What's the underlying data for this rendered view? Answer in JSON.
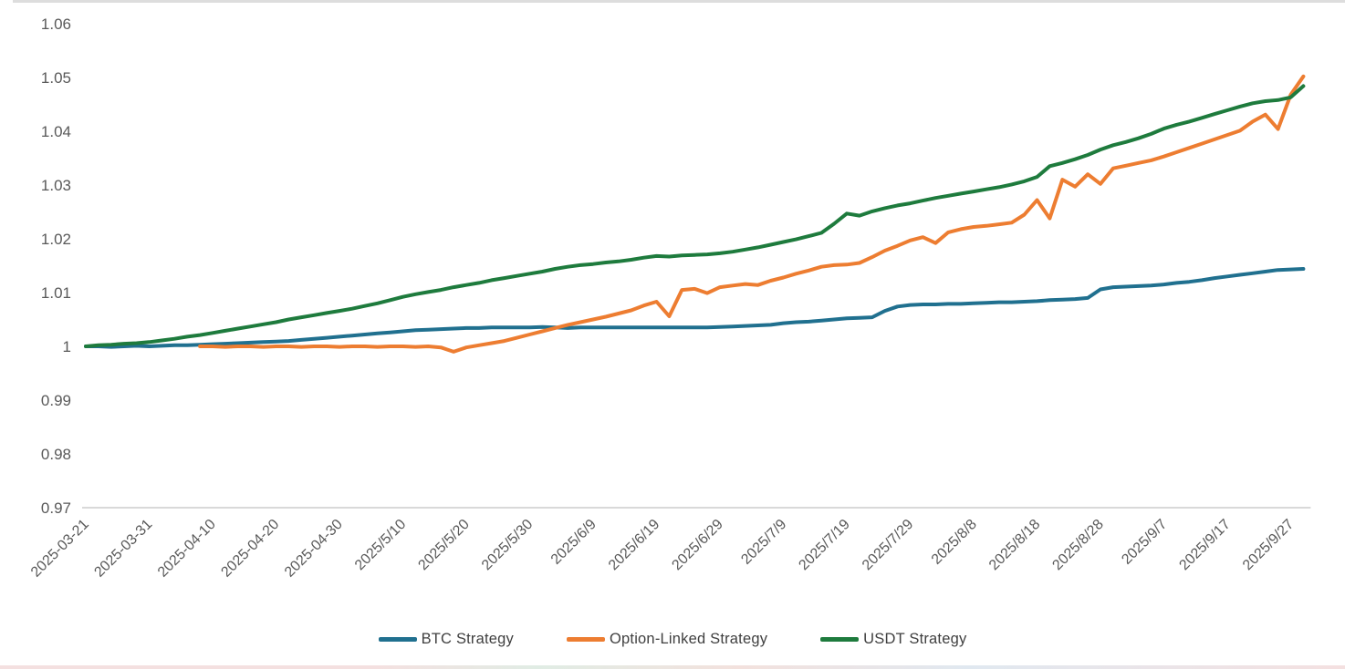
{
  "chart_data": {
    "type": "line",
    "title": "",
    "xlabel": "",
    "ylabel": "",
    "grid": "none",
    "legend_position": "bottom",
    "axis_line_color": "#D9D9D9",
    "tick_label_color": "#595959",
    "y_min": 0.97,
    "y_max": 1.06,
    "y_ticks": [
      "1.06",
      "1.05",
      "1.04",
      "1.03",
      "1.02",
      "1.01",
      "1",
      "0.99",
      "0.98",
      "0.97"
    ],
    "x_tick_labels": [
      "2025-03-21",
      "2025-03-31",
      "2025-04-10",
      "2025-04-20",
      "2025-04-30",
      "2025/5/10",
      "2025/5/20",
      "2025/5/30",
      "2025/6/9",
      "2025/6/19",
      "2025/6/29",
      "2025/7/9",
      "2025/7/19",
      "2025/7/29",
      "2025/8/8",
      "2025/8/18",
      "2025/8/28",
      "2025/9/7",
      "2025/9/17",
      "2025/9/27"
    ],
    "x_tick_interval_days": 10,
    "days_span": 192,
    "sample_step_days": 2,
    "series": [
      {
        "name": "BTC Strategy",
        "color": "#20708F",
        "values": [
          1.0,
          1.0,
          0.9999,
          1.0,
          1.0001,
          1.0,
          1.0001,
          1.0002,
          1.0002,
          1.0003,
          1.0004,
          1.0005,
          1.0006,
          1.0007,
          1.0008,
          1.0009,
          1.001,
          1.0012,
          1.0014,
          1.0016,
          1.0018,
          1.002,
          1.0022,
          1.0024,
          1.0026,
          1.0028,
          1.003,
          1.0031,
          1.0032,
          1.0033,
          1.0034,
          1.0034,
          1.0035,
          1.0035,
          1.0035,
          1.0035,
          1.0036,
          1.0035,
          1.0034,
          1.0035,
          1.0035,
          1.0035,
          1.0035,
          1.0035,
          1.0035,
          1.0035,
          1.0035,
          1.0035,
          1.0035,
          1.0035,
          1.0036,
          1.0037,
          1.0038,
          1.0039,
          1.004,
          1.0043,
          1.0045,
          1.0046,
          1.0048,
          1.005,
          1.0052,
          1.0053,
          1.0054,
          1.0066,
          1.0074,
          1.0077,
          1.0078,
          1.0078,
          1.0079,
          1.0079,
          1.008,
          1.0081,
          1.0082,
          1.0082,
          1.0083,
          1.0084,
          1.0086,
          1.0087,
          1.0088,
          1.009,
          1.0106,
          1.011,
          1.0111,
          1.0112,
          1.0113,
          1.0115,
          1.0118,
          1.012,
          1.0123,
          1.0127,
          1.013,
          1.0133,
          1.0136,
          1.0139,
          1.0142,
          1.0143,
          1.0144
        ]
      },
      {
        "name": "Option-Linked Strategy",
        "color": "#ED7D31",
        "values": [
          null,
          null,
          null,
          null,
          null,
          null,
          null,
          null,
          null,
          1.0,
          1.0,
          0.9999,
          1.0,
          1.0,
          0.9999,
          1.0,
          1.0,
          0.9999,
          1.0,
          1.0,
          0.9999,
          1.0,
          1.0,
          0.9999,
          1.0,
          1.0,
          0.9999,
          1.0,
          0.9998,
          0.999,
          0.9998,
          1.0002,
          1.0006,
          1.001,
          1.0016,
          1.0022,
          1.0028,
          1.0034,
          1.004,
          1.0045,
          1.005,
          1.0055,
          1.0061,
          1.0067,
          1.0076,
          1.0083,
          1.0056,
          1.0105,
          1.0107,
          1.0099,
          1.011,
          1.0113,
          1.0116,
          1.0114,
          1.0122,
          1.0128,
          1.0135,
          1.0141,
          1.0148,
          1.0151,
          1.0152,
          1.0155,
          1.0166,
          1.0178,
          1.0187,
          1.0197,
          1.0203,
          1.0192,
          1.0212,
          1.0218,
          1.0222,
          1.0224,
          1.0227,
          1.023,
          1.0245,
          1.0272,
          1.0238,
          1.031,
          1.0297,
          1.032,
          1.0302,
          1.0331,
          1.0336,
          1.0341,
          1.0346,
          1.0353,
          1.0361,
          1.0369,
          1.0377,
          1.0385,
          1.0393,
          1.0401,
          1.0418,
          1.0431,
          1.0404,
          1.0468,
          1.0502
        ]
      },
      {
        "name": "USDT Strategy",
        "color": "#1E7B3D",
        "values": [
          1.0,
          1.0002,
          1.0003,
          1.0005,
          1.0006,
          1.0008,
          1.0011,
          1.0014,
          1.0018,
          1.0021,
          1.0025,
          1.0029,
          1.0033,
          1.0037,
          1.0041,
          1.0045,
          1.005,
          1.0054,
          1.0058,
          1.0062,
          1.0066,
          1.007,
          1.0075,
          1.008,
          1.0086,
          1.0092,
          1.0097,
          1.0101,
          1.0105,
          1.011,
          1.0114,
          1.0118,
          1.0123,
          1.0127,
          1.0131,
          1.0135,
          1.0139,
          1.0144,
          1.0148,
          1.0151,
          1.0153,
          1.0156,
          1.0158,
          1.0161,
          1.0165,
          1.0168,
          1.0167,
          1.0169,
          1.017,
          1.0171,
          1.0173,
          1.0176,
          1.018,
          1.0184,
          1.0189,
          1.0194,
          1.0199,
          1.0205,
          1.0211,
          1.0228,
          1.0247,
          1.0243,
          1.0251,
          1.0257,
          1.0262,
          1.0266,
          1.0271,
          1.0276,
          1.028,
          1.0284,
          1.0288,
          1.0292,
          1.0296,
          1.0301,
          1.0307,
          1.0315,
          1.0335,
          1.0341,
          1.0348,
          1.0356,
          1.0366,
          1.0374,
          1.038,
          1.0387,
          1.0395,
          1.0405,
          1.0412,
          1.0418,
          1.0425,
          1.0432,
          1.0439,
          1.0446,
          1.0452,
          1.0456,
          1.0458,
          1.0463,
          1.0484
        ]
      }
    ]
  },
  "legend": {
    "items": [
      {
        "label": "BTC Strategy"
      },
      {
        "label": "Option-Linked Strategy"
      },
      {
        "label": "USDT Strategy"
      }
    ]
  }
}
